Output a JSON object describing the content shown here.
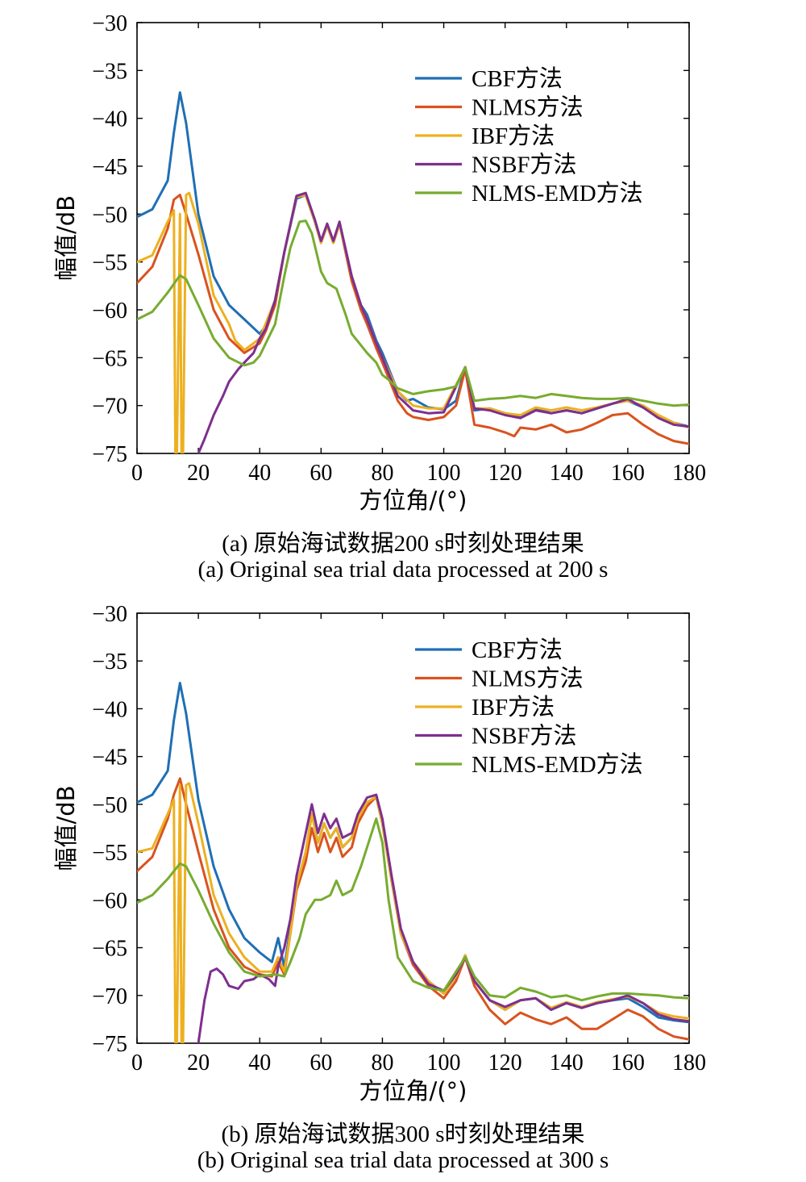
{
  "colors": {
    "CBF方法": "#1f6fb4",
    "NLMS方法": "#d9531e",
    "IBF方法": "#edb020",
    "NSBF方法": "#7e2f8e",
    "NLMS-EMD方法": "#77ac30"
  },
  "chart_data": [
    {
      "type": "line",
      "xlabel": "方位角/(°)",
      "ylabel": "幅值/dB",
      "xlim": [
        0,
        180
      ],
      "ylim": [
        -75,
        -30
      ],
      "xticks": [
        0,
        20,
        40,
        60,
        80,
        100,
        120,
        140,
        160,
        180
      ],
      "yticks": [
        -30,
        -35,
        -40,
        -45,
        -50,
        -55,
        -60,
        -65,
        -70,
        -75
      ],
      "legend_position": "top-right",
      "caption_cn": "(a) 原始海试数据200 s时刻处理结果",
      "caption_en": "(a) Original sea trial data processed at 200 s",
      "series": [
        {
          "name": "CBF方法",
          "x": [
            0,
            5,
            10,
            12,
            14,
            16,
            20,
            25,
            30,
            35,
            40,
            42,
            45,
            48,
            52,
            55,
            58,
            60,
            62,
            64,
            66,
            70,
            73,
            75,
            78,
            80,
            85,
            88,
            90,
            95,
            100,
            104,
            107,
            110,
            115,
            120,
            125,
            130,
            135,
            140,
            145,
            150,
            155,
            160,
            165,
            170,
            175,
            180
          ],
          "y": [
            -50.3,
            -49.5,
            -46.5,
            -41.5,
            -37.3,
            -40.5,
            -50,
            -56.5,
            -59.5,
            -61,
            -62.5,
            -61.7,
            -59,
            -54,
            -48.4,
            -48,
            -50.8,
            -53,
            -51.2,
            -53,
            -51,
            -56.5,
            -59.5,
            -60.5,
            -63.2,
            -64.5,
            -68.5,
            -69.5,
            -69.3,
            -70.2,
            -70.4,
            -69.5,
            -66,
            -70.5,
            -70.3,
            -70.8,
            -71.2,
            -70.3,
            -70.8,
            -70.5,
            -70.8,
            -70.3,
            -69.8,
            -69.5,
            -70.2,
            -71.2,
            -71.8,
            -72.2
          ]
        },
        {
          "name": "NLMS方法",
          "x": [
            0,
            5,
            10,
            12,
            14,
            16,
            20,
            25,
            30,
            35,
            40,
            42,
            45,
            48,
            52,
            55,
            58,
            60,
            62,
            64,
            66,
            70,
            73,
            75,
            78,
            80,
            85,
            88,
            90,
            95,
            100,
            104,
            107,
            110,
            115,
            120,
            123,
            125,
            130,
            135,
            140,
            145,
            150,
            155,
            160,
            165,
            170,
            175,
            180
          ],
          "y": [
            -57.2,
            -55.5,
            -51.5,
            -48.5,
            -48,
            -50,
            -54.2,
            -60,
            -63,
            -64.5,
            -63.5,
            -62.2,
            -59.5,
            -54,
            -48.2,
            -48,
            -50.8,
            -53,
            -51.2,
            -53,
            -51,
            -57,
            -60,
            -61.5,
            -64,
            -65.5,
            -69.5,
            -70.8,
            -71.2,
            -71.5,
            -71.2,
            -70,
            -66.2,
            -72,
            -72.3,
            -72.8,
            -73.2,
            -72.3,
            -72.5,
            -72,
            -72.8,
            -72.5,
            -71.8,
            -71,
            -70.8,
            -72,
            -73,
            -73.7,
            -74
          ]
        },
        {
          "name": "IBF方法",
          "x": [
            0,
            5,
            10,
            12,
            12.5,
            13,
            14,
            14.5,
            15,
            16,
            17,
            20,
            25,
            30,
            32,
            35,
            38,
            40,
            45,
            48,
            52,
            55,
            58,
            60,
            62,
            64,
            66,
            70,
            73,
            75,
            78,
            80,
            85,
            90,
            95,
            100,
            107,
            110,
            115,
            120,
            125,
            130,
            135,
            140,
            145,
            150,
            155,
            160,
            165,
            170,
            175,
            180
          ],
          "y": [
            -55,
            -54.3,
            -50.8,
            -49.6,
            -75,
            -75,
            -50,
            -75,
            -75,
            -48,
            -47.8,
            -51,
            -58.5,
            -61.5,
            -63.2,
            -64.2,
            -63.5,
            -63,
            -59,
            -54,
            -48.2,
            -48,
            -50.8,
            -53,
            -51.2,
            -53,
            -51,
            -56.5,
            -59.5,
            -61,
            -63.5,
            -65,
            -68.5,
            -70,
            -70.3,
            -70.3,
            -66,
            -70.3,
            -70.3,
            -70.8,
            -71,
            -70.2,
            -70.5,
            -70.2,
            -70.5,
            -70.2,
            -69.8,
            -69.5,
            -70,
            -71,
            -71.8,
            -72.3
          ]
        },
        {
          "name": "NSBF方法",
          "x": [
            20,
            22,
            25,
            28,
            30,
            33,
            35,
            38,
            40,
            42,
            45,
            48,
            52,
            55,
            58,
            60,
            62,
            64,
            66,
            70,
            73,
            75,
            78,
            80,
            85,
            90,
            95,
            100,
            107,
            110,
            115,
            120,
            125,
            130,
            135,
            140,
            145,
            150,
            155,
            160,
            165,
            170,
            175,
            180
          ],
          "y": [
            -75,
            -73.5,
            -71,
            -69,
            -67.5,
            -66.2,
            -65.5,
            -64.5,
            -63,
            -62,
            -59,
            -54,
            -48.1,
            -47.8,
            -50.6,
            -52.8,
            -51,
            -52.8,
            -50.8,
            -56.5,
            -59.5,
            -61,
            -63.5,
            -65,
            -69,
            -70.5,
            -70.8,
            -70.7,
            -66,
            -70.3,
            -70.5,
            -71,
            -71.3,
            -70.5,
            -70.8,
            -70.5,
            -70.8,
            -70.3,
            -69.8,
            -69.3,
            -70.2,
            -71.3,
            -72,
            -72.2
          ]
        },
        {
          "name": "NLMS-EMD方法",
          "x": [
            0,
            5,
            10,
            14,
            16,
            20,
            25,
            30,
            35,
            38,
            40,
            45,
            48,
            50,
            53,
            55,
            57,
            60,
            62,
            65,
            68,
            70,
            75,
            78,
            80,
            82,
            85,
            90,
            95,
            100,
            104,
            107,
            110,
            115,
            120,
            125,
            130,
            135,
            140,
            145,
            150,
            155,
            160,
            165,
            170,
            175,
            180
          ],
          "y": [
            -61,
            -60.2,
            -58.2,
            -56.4,
            -56.8,
            -59.5,
            -63,
            -65,
            -65.8,
            -65.5,
            -64.8,
            -61.5,
            -56.5,
            -53.5,
            -50.8,
            -50.7,
            -52,
            -56,
            -57.2,
            -57.8,
            -60.5,
            -62.5,
            -64.5,
            -65.5,
            -66.8,
            -67.3,
            -68.2,
            -68.8,
            -68.5,
            -68.3,
            -68,
            -66,
            -69.5,
            -69.3,
            -69.2,
            -69,
            -69.2,
            -68.8,
            -69,
            -69.2,
            -69.3,
            -69.3,
            -69.2,
            -69.5,
            -69.8,
            -70,
            -69.9
          ]
        }
      ]
    },
    {
      "type": "line",
      "xlabel": "方位角/(°)",
      "ylabel": "幅值/dB",
      "xlim": [
        0,
        180
      ],
      "ylim": [
        -75,
        -30
      ],
      "xticks": [
        0,
        20,
        40,
        60,
        80,
        100,
        120,
        140,
        160,
        180
      ],
      "yticks": [
        -30,
        -35,
        -40,
        -45,
        -50,
        -55,
        -60,
        -65,
        -70,
        -75
      ],
      "legend_position": "top-right",
      "caption_cn": "(b) 原始海试数据300 s时刻处理结果",
      "caption_en": "(b) Original sea trial data processed at 300 s",
      "series": [
        {
          "name": "CBF方法",
          "x": [
            0,
            5,
            10,
            12,
            14,
            16,
            20,
            25,
            30,
            35,
            40,
            44,
            46,
            48,
            50,
            52,
            55,
            57,
            59,
            61,
            63,
            65,
            67,
            70,
            72,
            75,
            78,
            80,
            83,
            86,
            90,
            95,
            100,
            104,
            107,
            110,
            115,
            120,
            125,
            130,
            135,
            140,
            145,
            150,
            155,
            160,
            165,
            170,
            175,
            180
          ],
          "y": [
            -49.8,
            -49,
            -46.5,
            -41.2,
            -37.3,
            -40.5,
            -49.5,
            -56.5,
            -61,
            -64,
            -65.5,
            -66.5,
            -64,
            -67,
            -63,
            -58.5,
            -55,
            -51,
            -54,
            -52,
            -53.5,
            -52.5,
            -54.5,
            -53.5,
            -51.5,
            -49.8,
            -49.2,
            -52,
            -58,
            -63.5,
            -66.5,
            -68.5,
            -69.8,
            -68,
            -65.8,
            -68.5,
            -70.5,
            -71.5,
            -70.5,
            -70.3,
            -71.5,
            -70.8,
            -71.3,
            -70.8,
            -70.5,
            -70.3,
            -71.2,
            -72.3,
            -72.6,
            -72.8
          ]
        },
        {
          "name": "NLMS方法",
          "x": [
            0,
            5,
            10,
            12,
            14,
            16,
            20,
            25,
            30,
            35,
            40,
            44,
            46,
            48,
            50,
            52,
            55,
            57,
            59,
            61,
            63,
            65,
            67,
            70,
            72,
            75,
            78,
            80,
            83,
            86,
            90,
            95,
            100,
            104,
            107,
            110,
            115,
            120,
            125,
            130,
            135,
            140,
            145,
            150,
            155,
            160,
            165,
            170,
            175,
            180
          ],
          "y": [
            -57,
            -55.5,
            -51.5,
            -49,
            -47.3,
            -50,
            -55,
            -61,
            -65,
            -67,
            -67.8,
            -68,
            -66.5,
            -67.8,
            -63.5,
            -59,
            -56,
            -52.5,
            -55,
            -53,
            -55,
            -53.5,
            -55.5,
            -54.5,
            -52,
            -50.2,
            -49.2,
            -52,
            -58,
            -63.5,
            -66.8,
            -69,
            -70.3,
            -68.5,
            -66,
            -69,
            -71.5,
            -73,
            -71.8,
            -72.5,
            -73,
            -72.3,
            -73.5,
            -73.5,
            -72.5,
            -71.5,
            -72.2,
            -73.5,
            -74.3,
            -74.6
          ]
        },
        {
          "name": "IBF方法",
          "x": [
            0,
            5,
            10,
            12,
            12.5,
            13,
            14,
            14.5,
            15,
            16,
            17,
            20,
            25,
            30,
            33,
            35,
            40,
            44,
            46,
            48,
            50,
            52,
            55,
            57,
            59,
            61,
            63,
            65,
            67,
            70,
            72,
            75,
            78,
            80,
            83,
            86,
            90,
            95,
            100,
            104,
            107,
            110,
            115,
            120,
            125,
            130,
            135,
            140,
            145,
            150,
            155,
            160,
            165,
            170,
            175,
            180
          ],
          "y": [
            -55,
            -54.6,
            -51,
            -49.5,
            -75,
            -75,
            -48,
            -75,
            -75,
            -48,
            -47.8,
            -52,
            -59.5,
            -63.5,
            -65,
            -66,
            -67.5,
            -67.5,
            -66,
            -67.5,
            -63.5,
            -58.5,
            -55,
            -51,
            -54,
            -52,
            -53.5,
            -52.5,
            -54.5,
            -53.5,
            -51.5,
            -49.8,
            -49.2,
            -52,
            -58,
            -63.5,
            -66.5,
            -68.5,
            -69.8,
            -68,
            -65.8,
            -68.5,
            -70.5,
            -71.5,
            -70.5,
            -70.3,
            -71.3,
            -70.7,
            -71.2,
            -70.7,
            -70.4,
            -70.1,
            -70.8,
            -71.8,
            -72.2,
            -72.4
          ]
        },
        {
          "name": "NSBF方法",
          "x": [
            20,
            22,
            24,
            26,
            28,
            30,
            33,
            35,
            38,
            40,
            43,
            45,
            46,
            48,
            50,
            52,
            55,
            57,
            59,
            61,
            63,
            65,
            67,
            70,
            72,
            75,
            78,
            80,
            83,
            86,
            90,
            95,
            100,
            104,
            107,
            110,
            115,
            120,
            125,
            130,
            135,
            140,
            145,
            150,
            155,
            160,
            165,
            170,
            175,
            180
          ],
          "y": [
            -75,
            -70.5,
            -67.5,
            -67.2,
            -67.8,
            -69,
            -69.3,
            -68.5,
            -68.3,
            -67.8,
            -68.3,
            -69,
            -67,
            -65,
            -62,
            -57.5,
            -53,
            -50,
            -53,
            -51,
            -52.5,
            -51.5,
            -53.5,
            -53,
            -51,
            -49.3,
            -49,
            -51.5,
            -57.5,
            -63,
            -66.5,
            -68.8,
            -69.5,
            -67.8,
            -66,
            -68.5,
            -70.5,
            -71.2,
            -70.5,
            -70.3,
            -71.5,
            -70.8,
            -71.3,
            -70.8,
            -70.5,
            -70,
            -70.8,
            -72,
            -72.5,
            -72.7
          ]
        },
        {
          "name": "NLMS-EMD方法",
          "x": [
            0,
            5,
            10,
            14,
            16,
            20,
            25,
            30,
            35,
            40,
            45,
            48,
            50,
            53,
            55,
            58,
            60,
            63,
            65,
            67,
            70,
            73,
            75,
            78,
            80,
            82,
            85,
            90,
            95,
            100,
            104,
            107,
            110,
            115,
            120,
            125,
            130,
            135,
            140,
            145,
            150,
            155,
            160,
            165,
            170,
            175,
            180
          ],
          "y": [
            -60.3,
            -59.5,
            -57.8,
            -56.2,
            -56.5,
            -59,
            -62.5,
            -65.5,
            -67.5,
            -68,
            -67.8,
            -68,
            -66.5,
            -64,
            -61.5,
            -60,
            -60,
            -59.5,
            -58,
            -59.5,
            -59,
            -56.5,
            -54.5,
            -51.5,
            -54,
            -60,
            -66,
            -68.5,
            -69.2,
            -69.5,
            -67.5,
            -66,
            -68,
            -70,
            -70.2,
            -69.2,
            -69.6,
            -70.2,
            -70,
            -70.5,
            -70.1,
            -69.8,
            -69.8,
            -69.9,
            -70,
            -70.2,
            -70.3
          ]
        }
      ]
    }
  ]
}
